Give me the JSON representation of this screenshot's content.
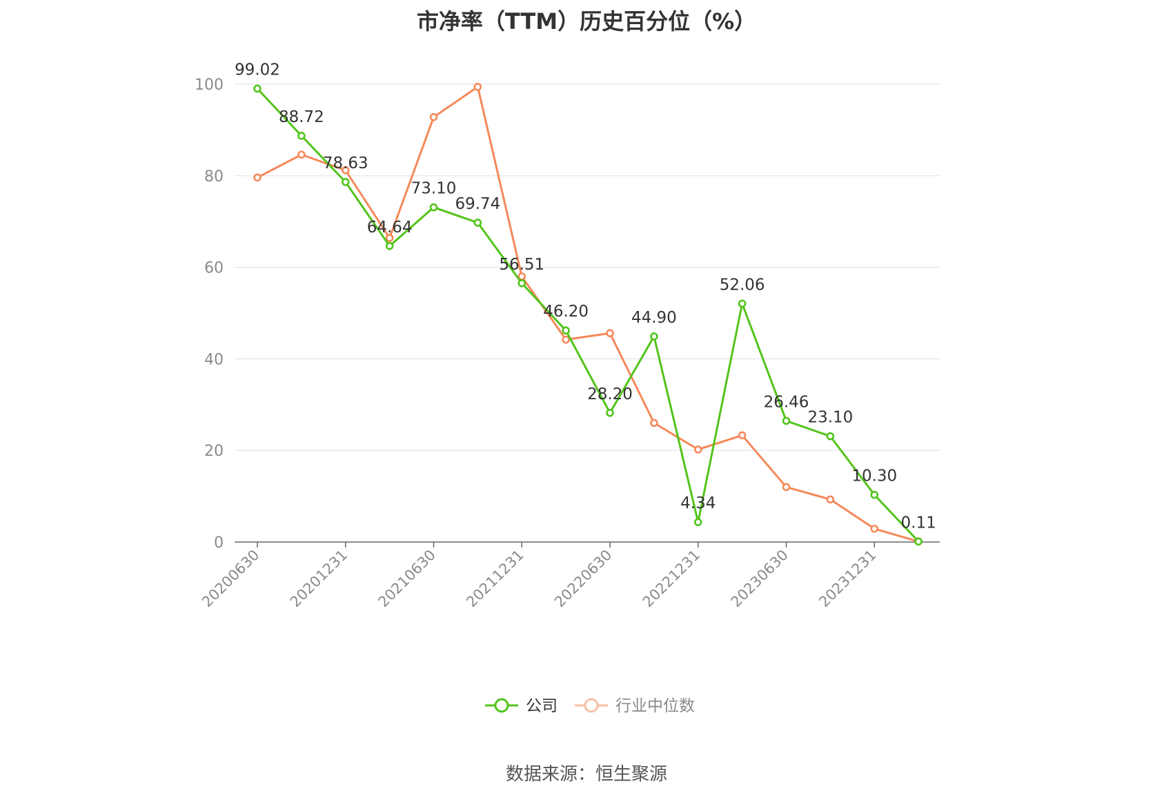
{
  "title": "市净率（TTM）历史百分位（%）",
  "source": "数据来源：恒生聚源",
  "colors": {
    "company": "#52c41a",
    "industry": "#f5895a",
    "legend_industry_icon": "#f7bfa6",
    "grid": "#e0e3ef",
    "axis": "#666666"
  },
  "chart_data": {
    "type": "line",
    "title": "市净率（TTM）历史百分位（%）",
    "xlabel": "",
    "ylabel": "",
    "ylim": [
      0,
      100
    ],
    "yticks": [
      0,
      20,
      40,
      60,
      80,
      100
    ],
    "grid": true,
    "legend_position": "bottom-center",
    "x": [
      "20200630",
      "20200930",
      "20201231",
      "20210331",
      "20210630",
      "20210930",
      "20211231",
      "20220331",
      "20220630",
      "20220930",
      "20221231",
      "20230331",
      "20230630",
      "20230930",
      "20231231",
      "20240331"
    ],
    "x_tick_labels": [
      "20200630",
      "20201231",
      "20210630",
      "20211231",
      "20220630",
      "20221231",
      "20230630",
      "20231231"
    ],
    "series": [
      {
        "name": "公司",
        "values": [
          99.02,
          88.72,
          78.63,
          64.64,
          73.1,
          69.74,
          56.51,
          46.2,
          28.2,
          44.9,
          4.34,
          52.06,
          26.46,
          23.1,
          10.3,
          0.11
        ],
        "labels": [
          "99.02",
          "88.72",
          "78.63",
          "64.64",
          "73.10",
          "69.74",
          "56.51",
          "46.20",
          "28.20",
          "44.90",
          "4.34",
          "52.06",
          "26.46",
          "23.10",
          "10.30",
          "0.11"
        ]
      },
      {
        "name": "行业中位数",
        "values": [
          79.6,
          84.6,
          81.2,
          66.4,
          92.8,
          99.4,
          58.0,
          44.2,
          45.6,
          26.0,
          20.2,
          23.3,
          12.0,
          9.3,
          2.9,
          0.1
        ]
      }
    ]
  }
}
